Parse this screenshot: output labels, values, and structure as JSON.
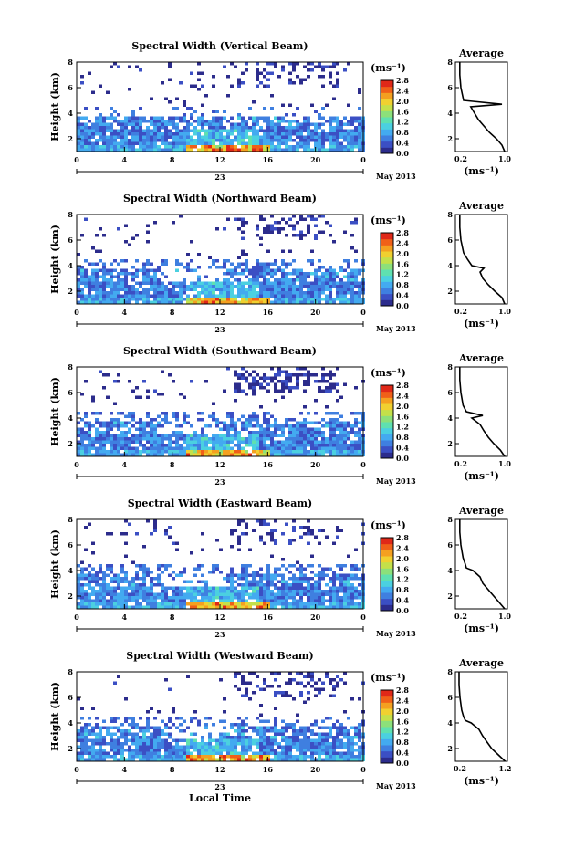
{
  "figure": {
    "xlabel": "Local Time",
    "date_label": "May 2013",
    "day_label": "23",
    "colorbar_unit": "(ms⁻¹)",
    "avg_unit": "(ms⁻¹)",
    "avg_title": "Average"
  },
  "chart_data": [
    {
      "type": "heatmap",
      "title": "Spectral Width (Vertical Beam)",
      "ylabel": "Height (km)",
      "x_ticks": [
        "0",
        "4",
        "8",
        "12",
        "16",
        "20",
        "0"
      ],
      "y_ticks": [
        "2",
        "4",
        "6",
        "8"
      ],
      "xlim": [
        0,
        24
      ],
      "ylim": [
        1,
        8
      ],
      "colorbar": {
        "range": [
          0.0,
          2.8
        ],
        "ticks": [
          "0.0",
          "0.4",
          "0.8",
          "1.2",
          "1.6",
          "2.0",
          "2.4",
          "2.8"
        ]
      },
      "average_profile": {
        "title": "Average",
        "x_ticks": [
          "0.2",
          "1.0"
        ],
        "xlim": [
          0.1,
          1.05
        ],
        "y_ticks": [
          "2",
          "4",
          "6",
          "8"
        ],
        "height_km": [
          1.0,
          1.5,
          2.0,
          2.5,
          3.0,
          3.5,
          4.0,
          4.5,
          4.7,
          5.0,
          6.0,
          7.0,
          8.0
        ],
        "width_ms": [
          1.0,
          0.95,
          0.85,
          0.72,
          0.62,
          0.52,
          0.45,
          0.38,
          0.95,
          0.25,
          0.2,
          0.18,
          0.18
        ]
      }
    },
    {
      "type": "heatmap",
      "title": "Spectral Width (Northward Beam)",
      "ylabel": "Height (km)",
      "x_ticks": [
        "0",
        "4",
        "8",
        "12",
        "16",
        "20",
        "0"
      ],
      "y_ticks": [
        "2",
        "4",
        "6",
        "8"
      ],
      "xlim": [
        0,
        24
      ],
      "ylim": [
        1,
        8
      ],
      "colorbar": {
        "range": [
          0.0,
          2.8
        ],
        "ticks": [
          "0.0",
          "0.4",
          "0.8",
          "1.2",
          "1.6",
          "2.0",
          "2.4",
          "2.8"
        ]
      },
      "average_profile": {
        "title": "Average",
        "x_ticks": [
          "0.2",
          "1.0"
        ],
        "xlim": [
          0.1,
          1.05
        ],
        "y_ticks": [
          "2",
          "4",
          "6",
          "8"
        ],
        "height_km": [
          1.0,
          1.5,
          2.0,
          2.5,
          3.0,
          3.5,
          3.8,
          4.0,
          4.5,
          5.0,
          6.0,
          7.0,
          8.0
        ],
        "width_ms": [
          1.0,
          0.95,
          0.82,
          0.7,
          0.6,
          0.55,
          0.62,
          0.4,
          0.32,
          0.25,
          0.2,
          0.18,
          0.18
        ]
      }
    },
    {
      "type": "heatmap",
      "title": "Spectral Width (Southward Beam)",
      "ylabel": "Height (km)",
      "x_ticks": [
        "0",
        "4",
        "8",
        "12",
        "16",
        "20",
        "0"
      ],
      "y_ticks": [
        "2",
        "4",
        "6",
        "8"
      ],
      "xlim": [
        0,
        24
      ],
      "ylim": [
        1,
        8
      ],
      "colorbar": {
        "range": [
          0.0,
          2.8
        ],
        "ticks": [
          "0.0",
          "0.4",
          "0.8",
          "1.2",
          "1.6",
          "2.0",
          "2.4",
          "2.8"
        ]
      },
      "average_profile": {
        "title": "Average",
        "x_ticks": [
          "0.2",
          "1.0"
        ],
        "xlim": [
          0.1,
          1.05
        ],
        "y_ticks": [
          "2",
          "4",
          "6",
          "8"
        ],
        "height_km": [
          1.0,
          1.5,
          2.0,
          2.5,
          3.0,
          3.5,
          4.0,
          4.2,
          4.5,
          5.0,
          6.0,
          7.0,
          8.0
        ],
        "width_ms": [
          1.0,
          0.92,
          0.8,
          0.7,
          0.62,
          0.55,
          0.4,
          0.6,
          0.3,
          0.24,
          0.2,
          0.18,
          0.18
        ]
      }
    },
    {
      "type": "heatmap",
      "title": "Spectral Width (Eastward Beam)",
      "ylabel": "Height (km)",
      "x_ticks": [
        "0",
        "4",
        "8",
        "12",
        "16",
        "20",
        "0"
      ],
      "y_ticks": [
        "2",
        "4",
        "6",
        "8"
      ],
      "xlim": [
        0,
        24
      ],
      "ylim": [
        1,
        8
      ],
      "colorbar": {
        "range": [
          0.0,
          2.8
        ],
        "ticks": [
          "0.0",
          "0.4",
          "0.8",
          "1.2",
          "1.6",
          "2.0",
          "2.4",
          "2.8"
        ]
      },
      "average_profile": {
        "title": "Average",
        "x_ticks": [
          "0.2",
          "1.0"
        ],
        "xlim": [
          0.1,
          1.05
        ],
        "y_ticks": [
          "2",
          "4",
          "6",
          "8"
        ],
        "height_km": [
          1.0,
          1.5,
          2.0,
          2.5,
          3.0,
          3.5,
          4.0,
          4.2,
          4.5,
          5.0,
          6.0,
          7.0,
          8.0
        ],
        "width_ms": [
          1.0,
          0.9,
          0.8,
          0.7,
          0.6,
          0.55,
          0.42,
          0.3,
          0.28,
          0.24,
          0.2,
          0.18,
          0.18
        ]
      }
    },
    {
      "type": "heatmap",
      "title": "Spectral Width (Westward Beam)",
      "ylabel": "Height (km)",
      "x_ticks": [
        "0",
        "4",
        "8",
        "12",
        "16",
        "20",
        "0"
      ],
      "y_ticks": [
        "2",
        "4",
        "6",
        "8"
      ],
      "xlim": [
        0,
        24
      ],
      "ylim": [
        1,
        8
      ],
      "colorbar": {
        "range": [
          0.0,
          2.8
        ],
        "ticks": [
          "0.0",
          "0.4",
          "0.8",
          "1.2",
          "1.6",
          "2.0",
          "2.4",
          "2.8"
        ]
      },
      "average_profile": {
        "title": "Average",
        "x_ticks": [
          "0.2",
          "1.2"
        ],
        "xlim": [
          0.1,
          1.25
        ],
        "y_ticks": [
          "2",
          "4",
          "6",
          "8"
        ],
        "height_km": [
          1.0,
          1.5,
          2.0,
          2.5,
          3.0,
          3.5,
          4.0,
          4.2,
          4.5,
          5.0,
          6.0,
          7.0,
          8.0
        ],
        "width_ms": [
          1.2,
          1.05,
          0.9,
          0.8,
          0.7,
          0.62,
          0.45,
          0.32,
          0.28,
          0.24,
          0.2,
          0.18,
          0.18
        ]
      }
    }
  ]
}
